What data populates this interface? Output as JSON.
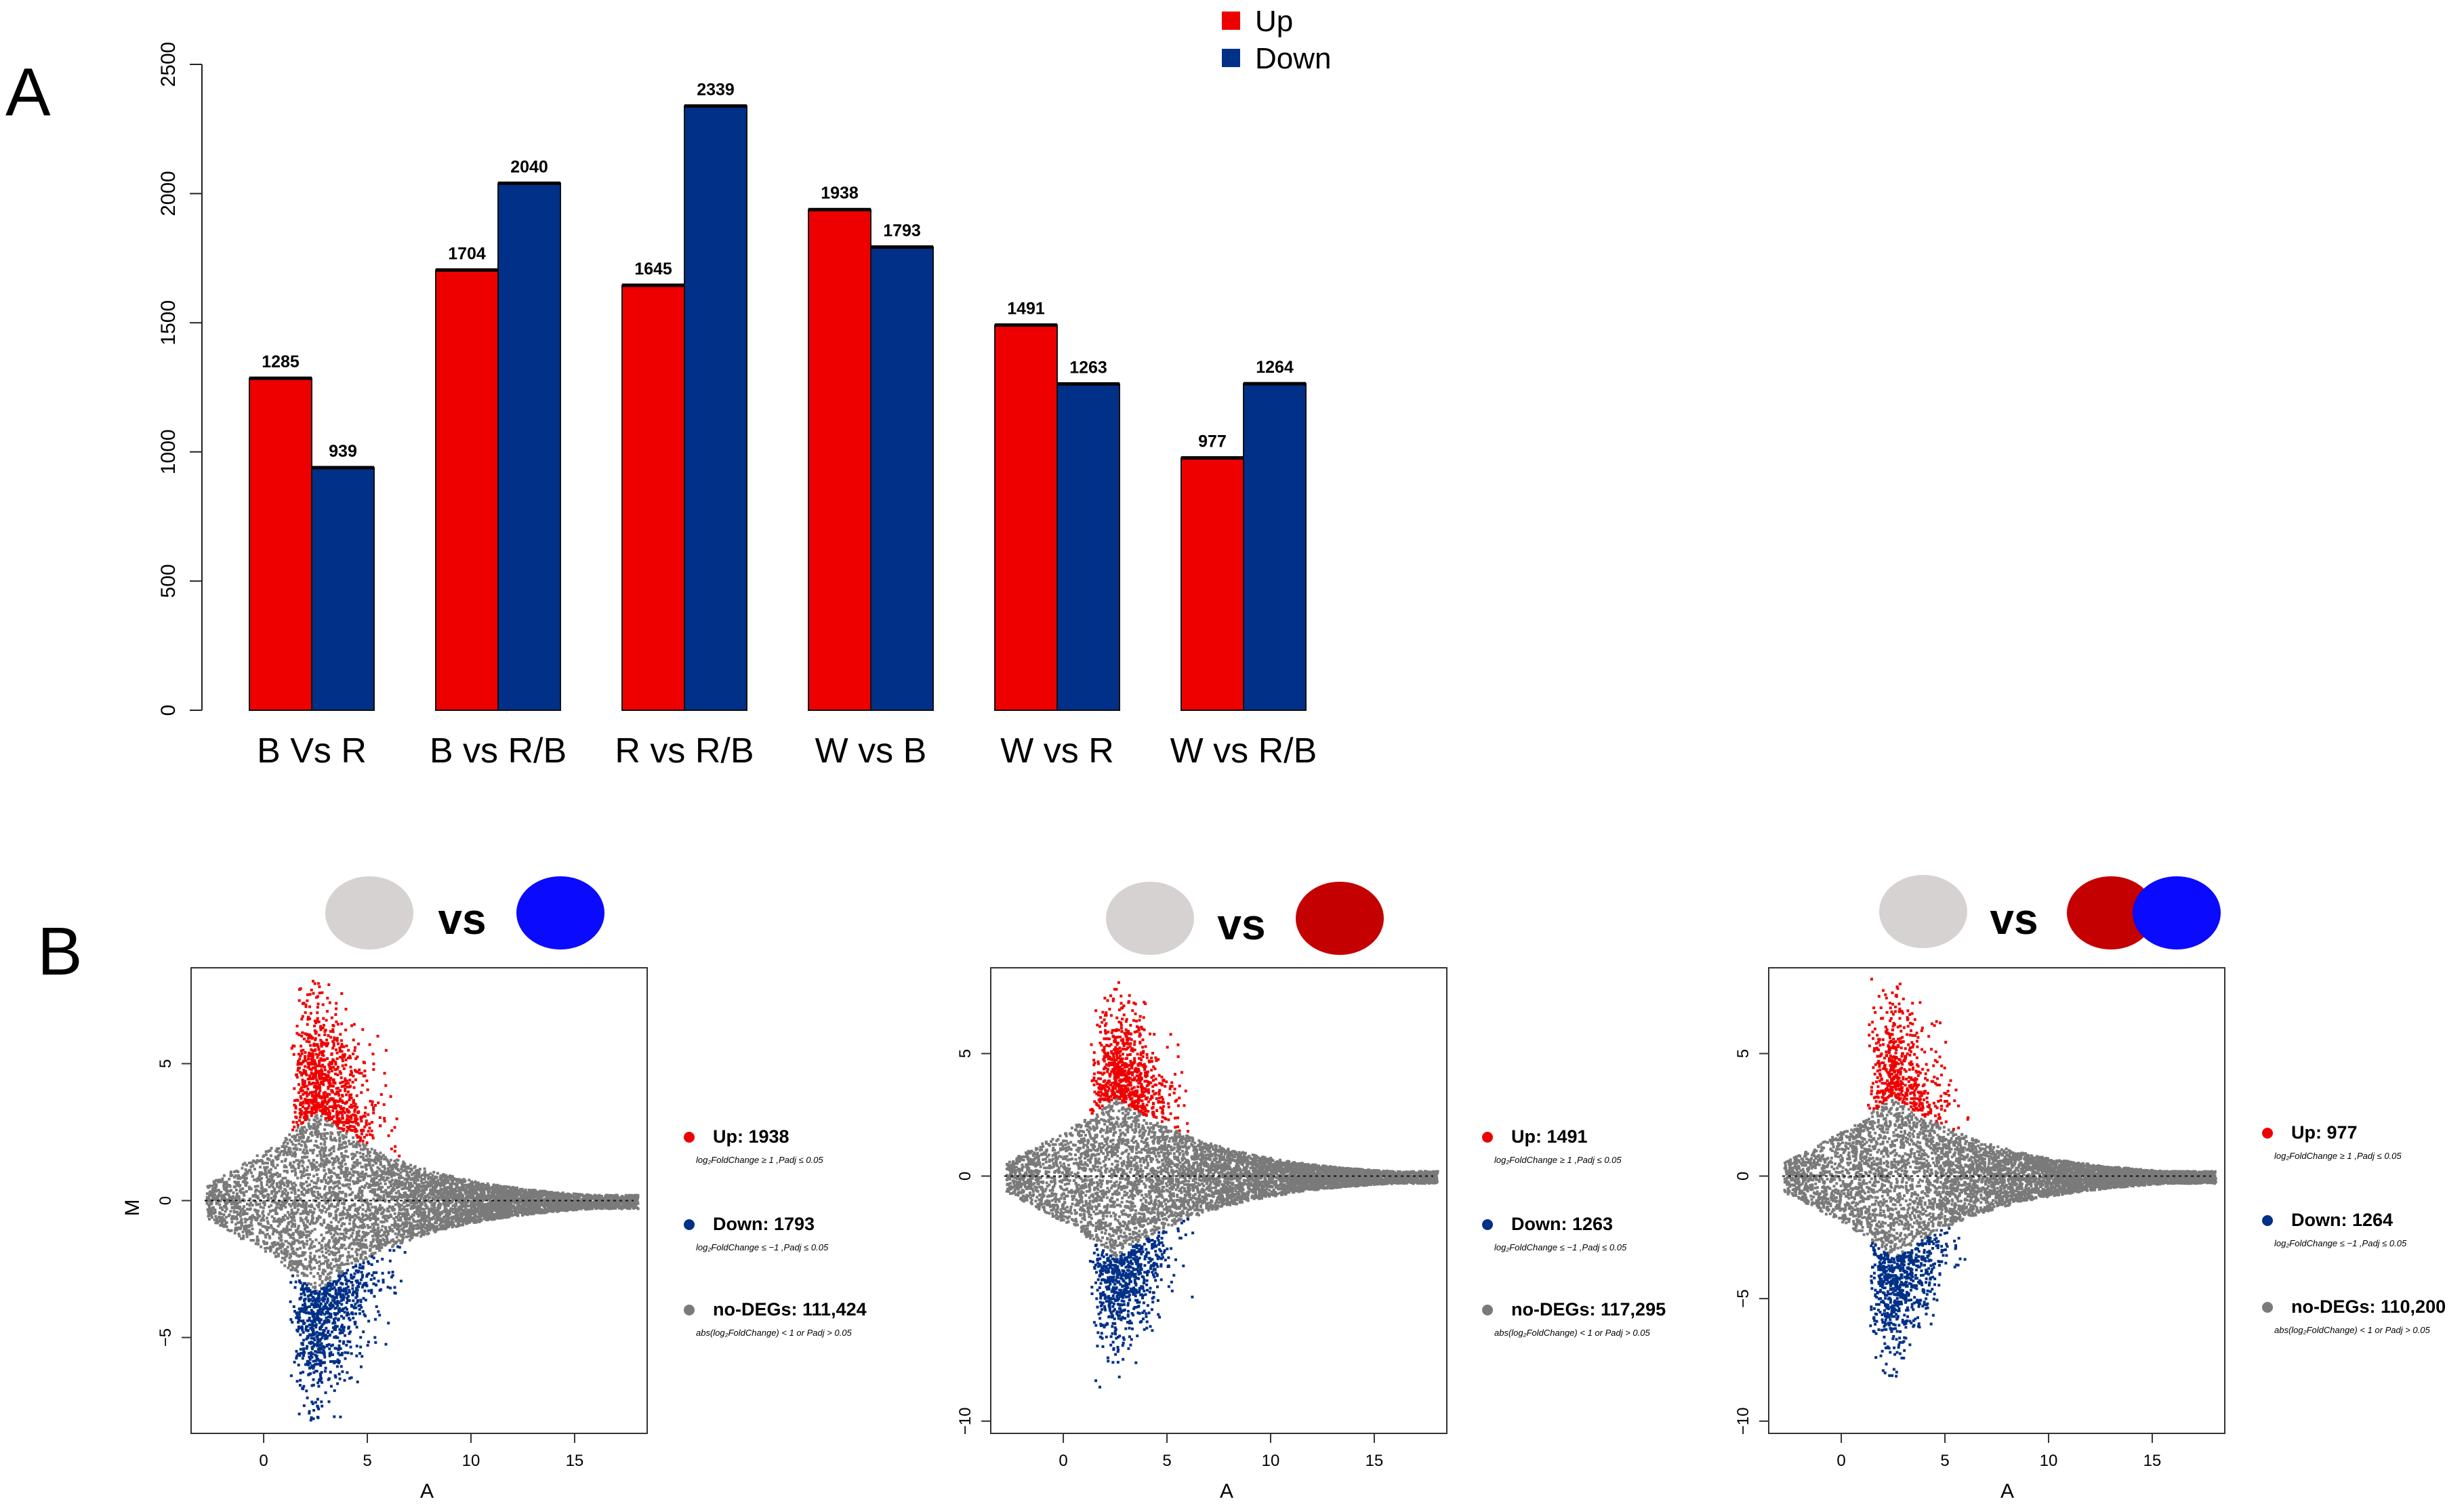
{
  "panel_labels": {
    "a": "A",
    "b": "B"
  },
  "colors": {
    "up": "#ee0000",
    "down": "#003087",
    "ns": "#7a7a7a",
    "gray_circle": "#d7d2d2",
    "red_circle": "#c40000",
    "blue_circle": "#0a0aff",
    "axis": "#222222"
  },
  "chart_data": [
    {
      "type": "bar",
      "title": "",
      "categories": [
        "B Vs R",
        "B vs R/B",
        "R vs R/B",
        "W vs B",
        "W vs R",
        "W vs R/B"
      ],
      "series": [
        {
          "name": "Up",
          "values": [
            1285,
            1704,
            1645,
            1938,
            1491,
            977
          ]
        },
        {
          "name": "Down",
          "values": [
            939,
            2040,
            2339,
            1793,
            1263,
            1264
          ]
        }
      ],
      "value_labels": {
        "up": [
          "1285",
          "1704",
          "1645",
          "1938",
          "1491",
          "977"
        ],
        "down": [
          "939",
          "2040",
          "2339",
          "1793",
          "1263",
          "1264"
        ]
      },
      "yticks": [
        "0",
        "500",
        "1000",
        "1500",
        "2000",
        "2500"
      ],
      "ylim": [
        0,
        2500
      ],
      "xlabel": "",
      "ylabel": "",
      "legend": {
        "position": "top-center",
        "entries": [
          "Up",
          "Down"
        ]
      }
    },
    {
      "type": "scatter",
      "title": "vs",
      "comparison": [
        "gray_circle",
        "blue_circle"
      ],
      "xlabel": "A",
      "ylabel": "M",
      "xticks": [
        "0",
        "5",
        "10",
        "15"
      ],
      "yticks": [
        "5",
        "0",
        "−5"
      ],
      "xlim": [
        -3.5,
        18.5
      ],
      "ylim": [
        -8.5,
        8.5
      ],
      "legend": {
        "up_label": "Up: 1938",
        "up_sub": "log₂FoldChange ≥ 1 ,Padj ≤ 0.05",
        "down_label": "Down: 1793",
        "down_sub": "log₂FoldChange ≤ −1 ,Padj ≤ 0.05",
        "ns_label": "no-DEGs: 111,424",
        "ns_sub": "abs(log₂FoldChange) < 1  or Padj > 0.05"
      }
    },
    {
      "type": "scatter",
      "title": "vs",
      "comparison": [
        "gray_circle",
        "red_circle"
      ],
      "xlabel": "A",
      "ylabel": "",
      "xticks": [
        "0",
        "5",
        "10",
        "15"
      ],
      "yticks": [
        "5",
        "0",
        "−10"
      ],
      "xlim": [
        -3.5,
        18.5
      ],
      "ylim": [
        -10.5,
        8.5
      ],
      "legend": {
        "up_label": "Up: 1491",
        "up_sub": "log₂FoldChange ≥ 1 ,Padj ≤ 0.05",
        "down_label": "Down: 1263",
        "down_sub": "log₂FoldChange ≤ −1 ,Padj ≤ 0.05",
        "ns_label": "no-DEGs: 117,295",
        "ns_sub": "abs(log₂FoldChange) < 1  or Padj > 0.05"
      }
    },
    {
      "type": "scatter",
      "title": "vs",
      "comparison": [
        "gray_circle",
        "red_circle",
        "blue_circle"
      ],
      "xlabel": "A",
      "ylabel": "",
      "xticks": [
        "0",
        "5",
        "10",
        "15"
      ],
      "yticks": [
        "5",
        "0",
        "−5",
        "−10"
      ],
      "xlim": [
        -3.5,
        18.5
      ],
      "ylim": [
        -10.5,
        8.5
      ],
      "legend": {
        "up_label": "Up: 977",
        "up_sub": "log₂FoldChange ≥ 1 ,Padj ≤ 0.05",
        "down_label": "Down: 1264",
        "down_sub": "log₂FoldChange ≤ −1 ,Padj ≤ 0.05",
        "ns_label": "no-DEGs: 110,200",
        "ns_sub": "abs(log₂FoldChange) < 1  or Padj > 0.05"
      }
    }
  ]
}
